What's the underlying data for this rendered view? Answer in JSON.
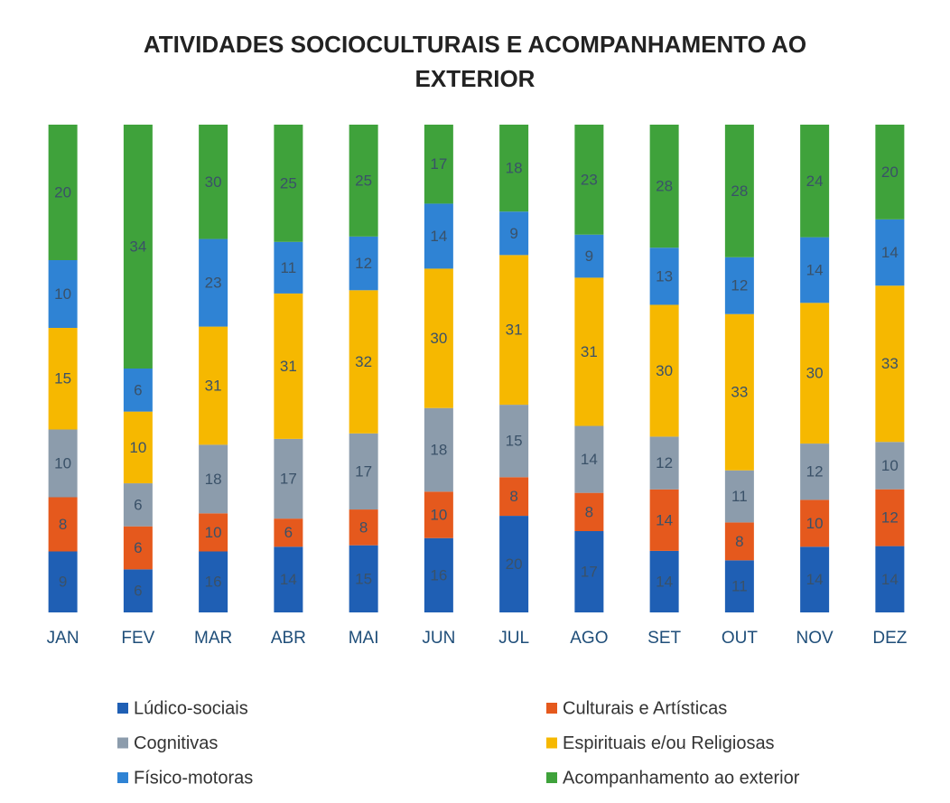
{
  "chart_data": {
    "type": "stacked_bar_100",
    "title": "ATIVIDADES SOCIOCULTURAIS E ACOMPANHAMENTO AO EXTERIOR",
    "categories": [
      "JAN",
      "FEV",
      "MAR",
      "ABR",
      "MAI",
      "JUN",
      "JUL",
      "AGO",
      "SET",
      "OUT",
      "NOV",
      "DEZ"
    ],
    "series": [
      {
        "name": "Lúdico-sociais",
        "color": "#1f5fb4",
        "values": [
          9,
          6,
          16,
          14,
          15,
          16,
          20,
          17,
          14,
          11,
          14,
          14
        ]
      },
      {
        "name": "Culturais e Artísticas",
        "color": "#e5591d",
        "values": [
          8,
          6,
          10,
          6,
          8,
          10,
          8,
          8,
          14,
          8,
          10,
          12
        ]
      },
      {
        "name": "Cognitivas",
        "color": "#8c9cac",
        "values": [
          10,
          6,
          18,
          17,
          17,
          18,
          15,
          14,
          12,
          11,
          12,
          10
        ]
      },
      {
        "name": "Espirituais e/ou Religiosas",
        "color": "#f6b800",
        "values": [
          15,
          10,
          31,
          31,
          32,
          30,
          31,
          31,
          30,
          33,
          30,
          33
        ]
      },
      {
        "name": "Físico-motoras",
        "color": "#2f83d4",
        "values": [
          10,
          6,
          23,
          11,
          12,
          14,
          9,
          9,
          13,
          12,
          14,
          14
        ]
      },
      {
        "name": "Acompanhamento ao exterior",
        "color": "#3fa23b",
        "values": [
          20,
          34,
          30,
          25,
          25,
          17,
          18,
          23,
          28,
          28,
          24,
          20
        ]
      }
    ]
  }
}
